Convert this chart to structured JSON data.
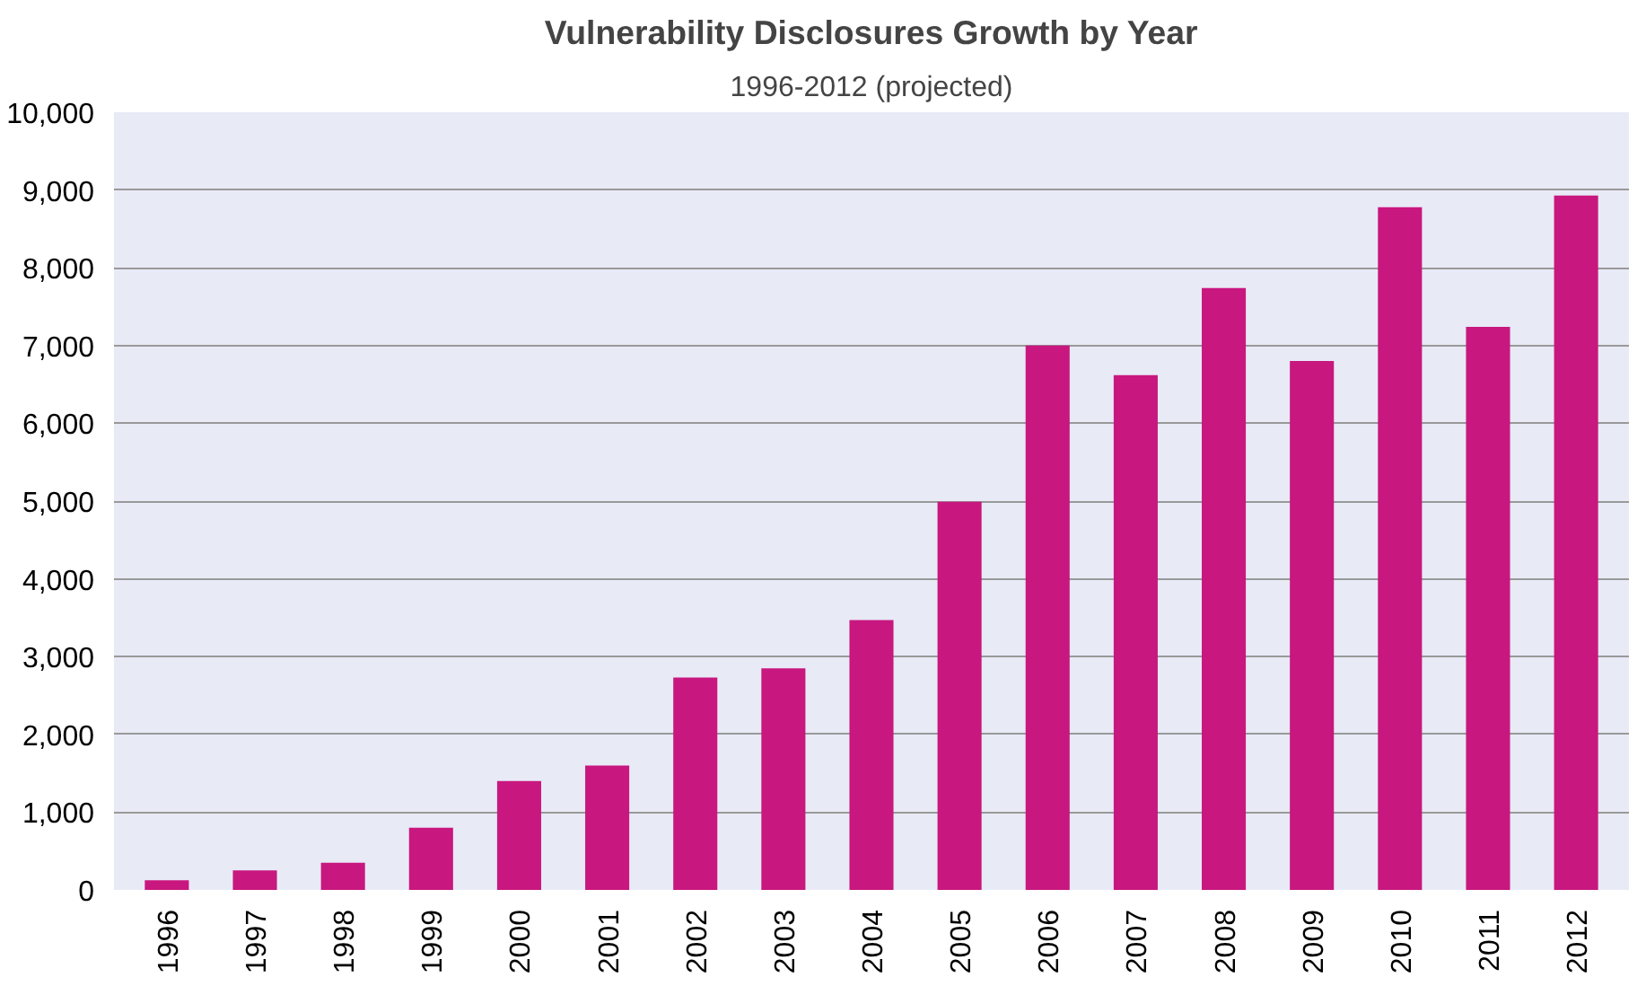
{
  "chart_data": {
    "type": "bar",
    "title": "Vulnerability Disclosures Growth by Year",
    "subtitle": "1996-2012 (projected)",
    "categories": [
      "1996",
      "1997",
      "1998",
      "1999",
      "2000",
      "2001",
      "2002",
      "2003",
      "2004",
      "2005",
      "2006",
      "2007",
      "2008",
      "2009",
      "2010",
      "2011",
      "2012"
    ],
    "values": [
      125,
      250,
      350,
      800,
      1400,
      1600,
      2730,
      2850,
      3470,
      4990,
      7000,
      6620,
      7740,
      6800,
      8780,
      7240,
      8930
    ],
    "color": "#c8177f",
    "ylim": [
      0,
      10000
    ],
    "yticks": [
      {
        "value": 0,
        "label": "0"
      },
      {
        "value": 1000,
        "label": "1,000"
      },
      {
        "value": 2000,
        "label": "2,000"
      },
      {
        "value": 3000,
        "label": "3,000"
      },
      {
        "value": 4000,
        "label": "4,000"
      },
      {
        "value": 5000,
        "label": "5,000"
      },
      {
        "value": 6000,
        "label": "6,000"
      },
      {
        "value": 7000,
        "label": "7,000"
      },
      {
        "value": 8000,
        "label": "8,000"
      },
      {
        "value": 9000,
        "label": "9,000"
      },
      {
        "value": 10000,
        "label": "10,000"
      }
    ],
    "grid": "y"
  }
}
